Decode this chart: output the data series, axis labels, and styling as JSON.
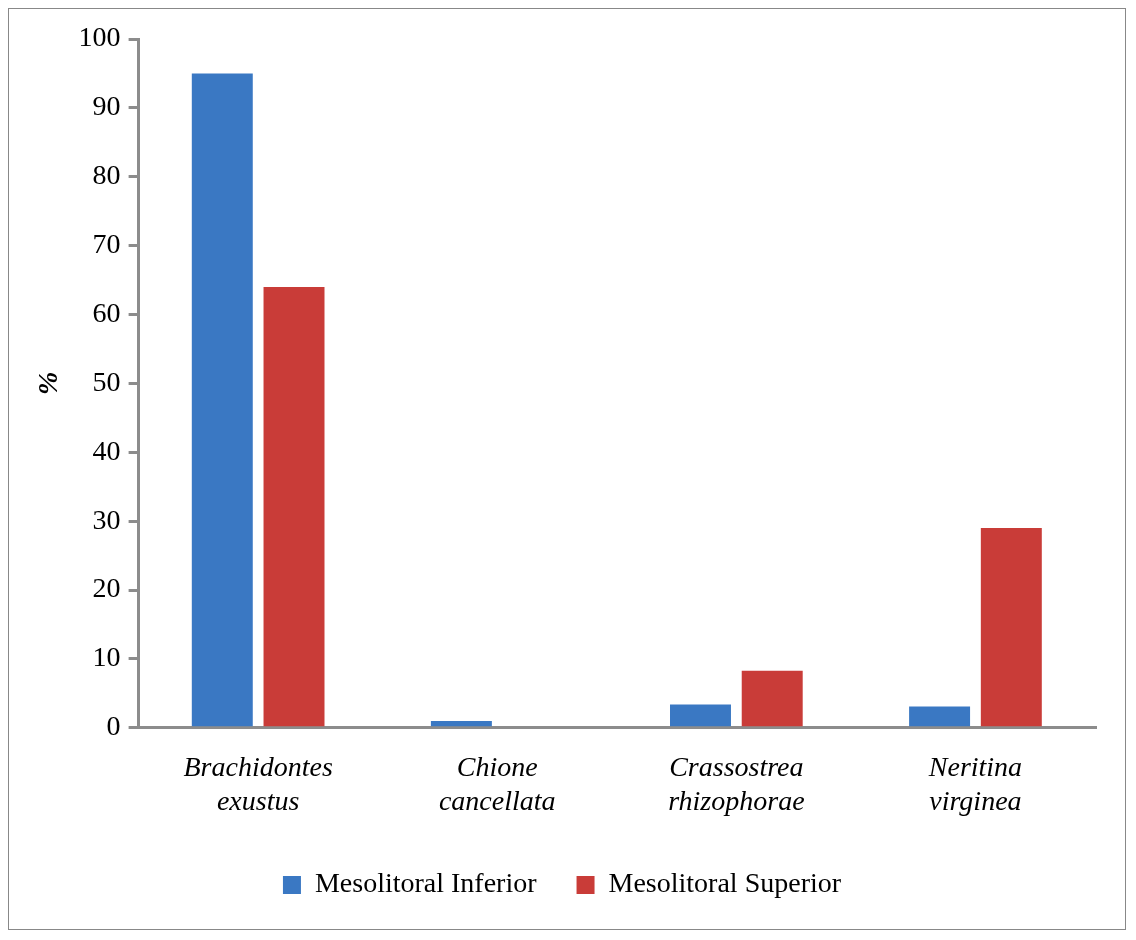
{
  "chart_data": {
    "type": "bar",
    "ylabel": "%",
    "categories": [
      "Brachidontes exustus",
      "Chione cancellata",
      "Crassostrea rhizophorae",
      "Neritina virginea"
    ],
    "series": [
      {
        "name": "Mesolitoral Inferior",
        "color": "#3a78c3",
        "values": [
          95,
          1,
          3.4,
          3.1
        ]
      },
      {
        "name": "Mesolitoral Superior",
        "color": "#c93c38",
        "values": [
          64,
          0,
          8.3,
          29
        ]
      }
    ],
    "ylim": [
      0,
      100
    ],
    "yticks": [
      0,
      10,
      20,
      30,
      40,
      50,
      60,
      70,
      80,
      90,
      100
    ],
    "grid": false,
    "legend": "bottom"
  }
}
